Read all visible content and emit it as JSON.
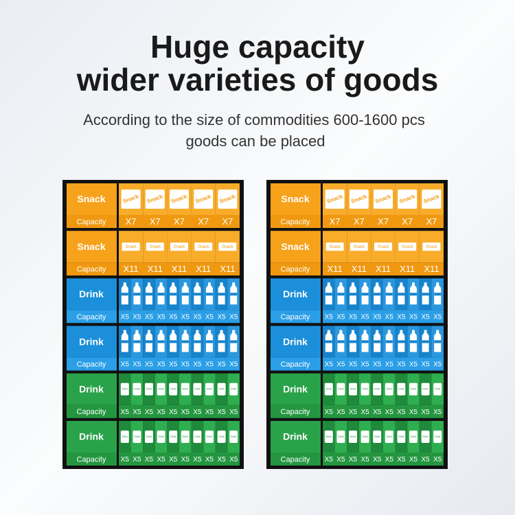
{
  "header": {
    "title_lines": [
      "Huge capacity",
      "wider varieties of goods"
    ],
    "subtitle_lines": [
      "According to the size of commodities 600-1600 pcs",
      "goods can be placed"
    ]
  },
  "rows": [
    {
      "label": "Snack",
      "capacity": "Capacity",
      "icon": "bag",
      "icon_label": "Snack",
      "cells": [
        "X7",
        "X7",
        "X7",
        "X7",
        "X7"
      ],
      "label_color": "#f7a21b",
      "band_color": "#f0980f",
      "cell_colors": [
        "#f8ac2a",
        "#f8ac2a"
      ]
    },
    {
      "label": "Snack",
      "capacity": "Capacity",
      "icon": "pack",
      "icon_label": "Snack",
      "cells": [
        "X11",
        "X11",
        "X11",
        "X11",
        "X11"
      ],
      "label_color": "#f7a21b",
      "band_color": "#f0980f",
      "cell_colors": [
        "#f8ac2a",
        "#f8ac2a"
      ]
    },
    {
      "label": "Drink",
      "capacity": "Capacity",
      "icon": "bottle",
      "cells": [
        "X5",
        "X5",
        "X5",
        "X5",
        "X5",
        "X5",
        "X5",
        "X5",
        "X5",
        "X5"
      ],
      "label_color": "#1b8fd9",
      "band_color": "#2a9ee6",
      "cell_colors": [
        "#1683cc",
        "#2a97de"
      ]
    },
    {
      "label": "Drink",
      "capacity": "Capacity",
      "icon": "bottle",
      "cells": [
        "X5",
        "X5",
        "X5",
        "X5",
        "X5",
        "X5",
        "X5",
        "X5",
        "X5",
        "X5"
      ],
      "label_color": "#1b8fd9",
      "band_color": "#2a9ee6",
      "cell_colors": [
        "#1683cc",
        "#2a97de"
      ]
    },
    {
      "label": "Drink",
      "capacity": "Capacity",
      "icon": "can",
      "icon_label": "Drink",
      "cells": [
        "X5",
        "X5",
        "X5",
        "X5",
        "X5",
        "X5",
        "X5",
        "X5",
        "X5",
        "X5"
      ],
      "label_color": "#2aa24a",
      "band_color": "#249640",
      "cell_colors": [
        "#1f8a3b",
        "#2fae50"
      ]
    },
    {
      "label": "Drink",
      "capacity": "Capacity",
      "icon": "can",
      "icon_label": "Drink",
      "cells": [
        "X5",
        "X5",
        "X5",
        "X5",
        "X5",
        "X5",
        "X5",
        "X5",
        "X5",
        "X5"
      ],
      "label_color": "#2aa24a",
      "band_color": "#249640",
      "cell_colors": [
        "#1f8a3b",
        "#2fae50"
      ]
    }
  ]
}
